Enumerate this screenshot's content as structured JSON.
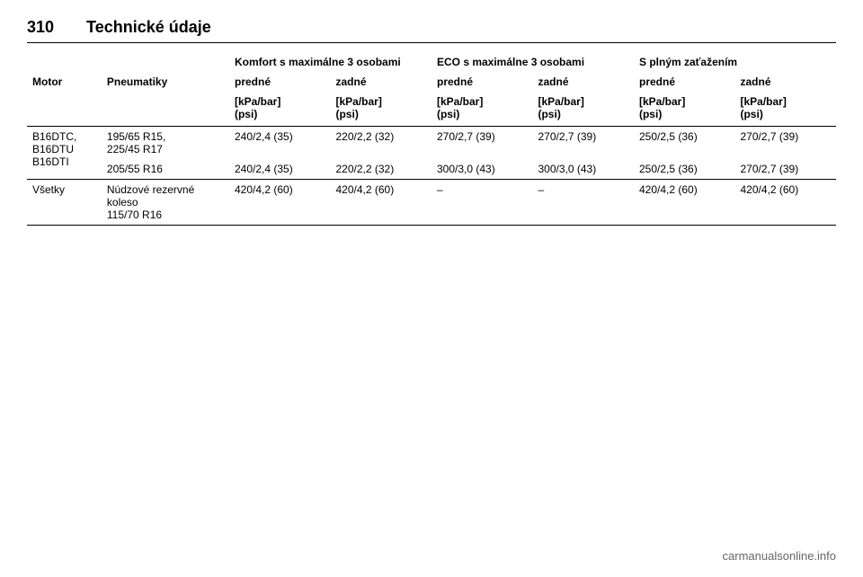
{
  "header": {
    "page_number": "310",
    "title": "Technické údaje"
  },
  "table": {
    "group_headers": {
      "comfort": "Komfort s maximálne 3 osobami",
      "eco": "ECO s maximálne 3 osobami",
      "full": "S plným zaťažením"
    },
    "col_labels": {
      "motor": "Motor",
      "tyres": "Pneumatiky",
      "front": "predné",
      "rear": "zadné"
    },
    "unit_line1": "[kPa/bar]",
    "unit_line2": "(psi)",
    "rows": [
      {
        "motor_lines": [
          "B16DTC,",
          "B16DTU",
          "B16DTI"
        ],
        "tyre_lines": [
          "195/65 R15,",
          "225/45 R17"
        ],
        "vals": [
          "240/2,4 (35)",
          "220/2,2 (32)",
          "270/2,7 (39)",
          "270/2,7 (39)",
          "250/2,5 (36)",
          "270/2,7 (39)"
        ]
      },
      {
        "motor_lines": [
          ""
        ],
        "tyre_lines": [
          "205/55 R16"
        ],
        "vals": [
          "240/2,4 (35)",
          "220/2,2 (32)",
          "300/3,0 (43)",
          "300/3,0 (43)",
          "250/2,5 (36)",
          "270/2,7 (39)"
        ]
      },
      {
        "motor_lines": [
          "Všetky"
        ],
        "tyre_lines": [
          "Núdzové rezervné koleso",
          "115/70 R16"
        ],
        "vals": [
          "420/4,2 (60)",
          "420/4,2 (60)",
          "–",
          "–",
          "420/4,2 (60)",
          "420/4,2 (60)"
        ]
      }
    ]
  },
  "footer": "carmanualsonline.info"
}
